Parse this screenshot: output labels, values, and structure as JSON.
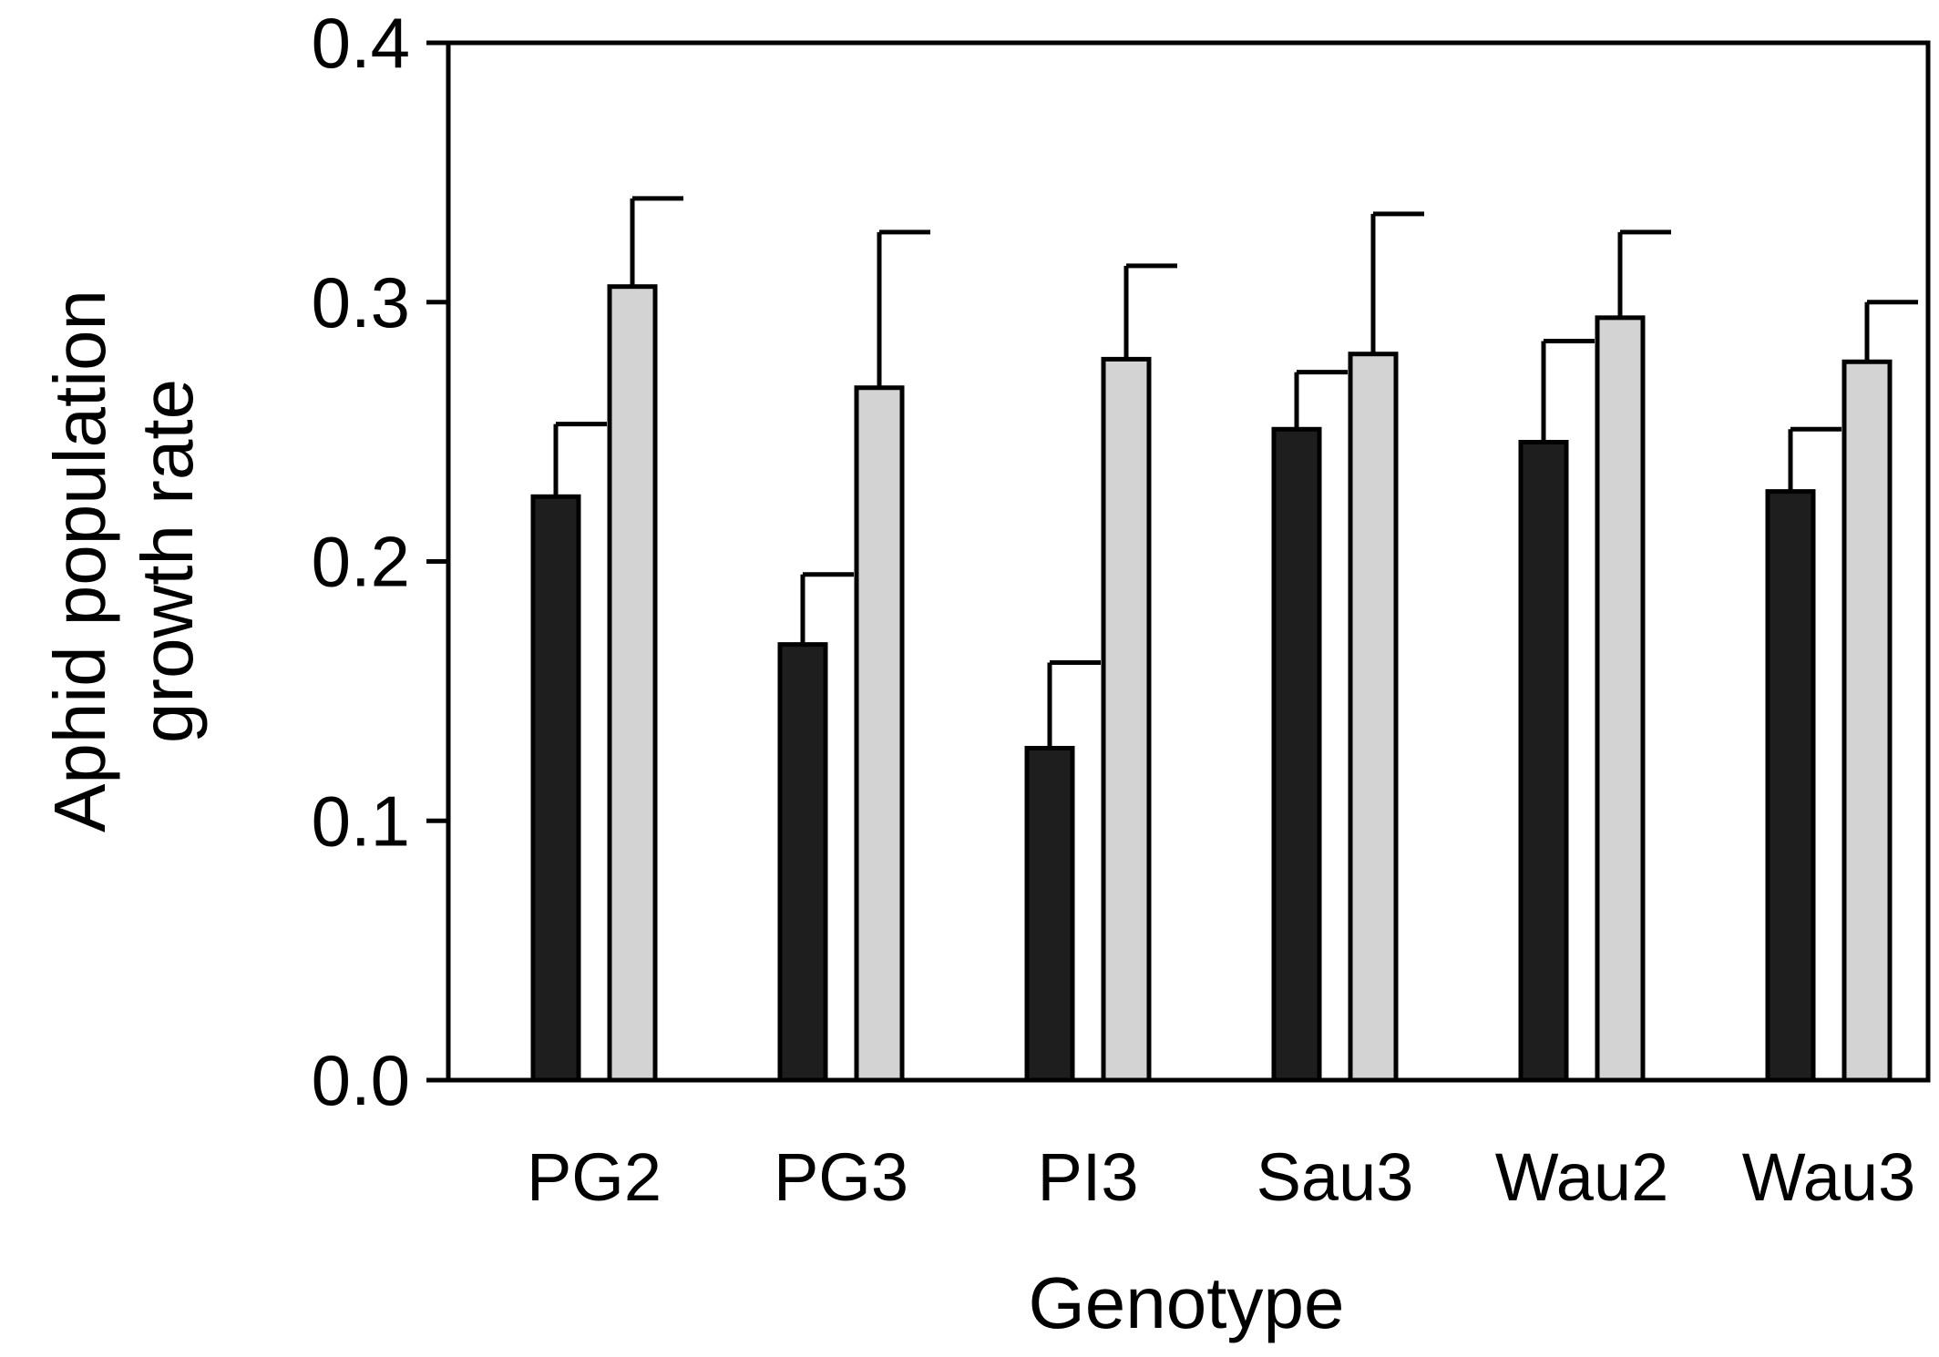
{
  "chart_data": {
    "type": "bar",
    "title": "",
    "xlabel": "Genotype",
    "ylabel_lines": [
      "Aphid population",
      "growth rate"
    ],
    "categories": [
      "PG2",
      "PG3",
      "PI3",
      "Sau3",
      "Wau2",
      "Wau3"
    ],
    "series": [
      {
        "color": "#1e1e1e",
        "values": [
          0.225,
          0.168,
          0.128,
          0.251,
          0.246,
          0.227
        ],
        "errors": [
          0.028,
          0.027,
          0.033,
          0.022,
          0.039,
          0.024
        ]
      },
      {
        "color": "#d3d3d3",
        "values": [
          0.306,
          0.267,
          0.278,
          0.28,
          0.294,
          0.277
        ],
        "errors": [
          0.034,
          0.06,
          0.036,
          0.054,
          0.033,
          0.023
        ]
      }
    ],
    "ylim": [
      0,
      0.4
    ],
    "yticks": [
      "0.0",
      "0.1",
      "0.2",
      "0.3",
      "0.4"
    ],
    "legend": "none",
    "grid": false
  }
}
